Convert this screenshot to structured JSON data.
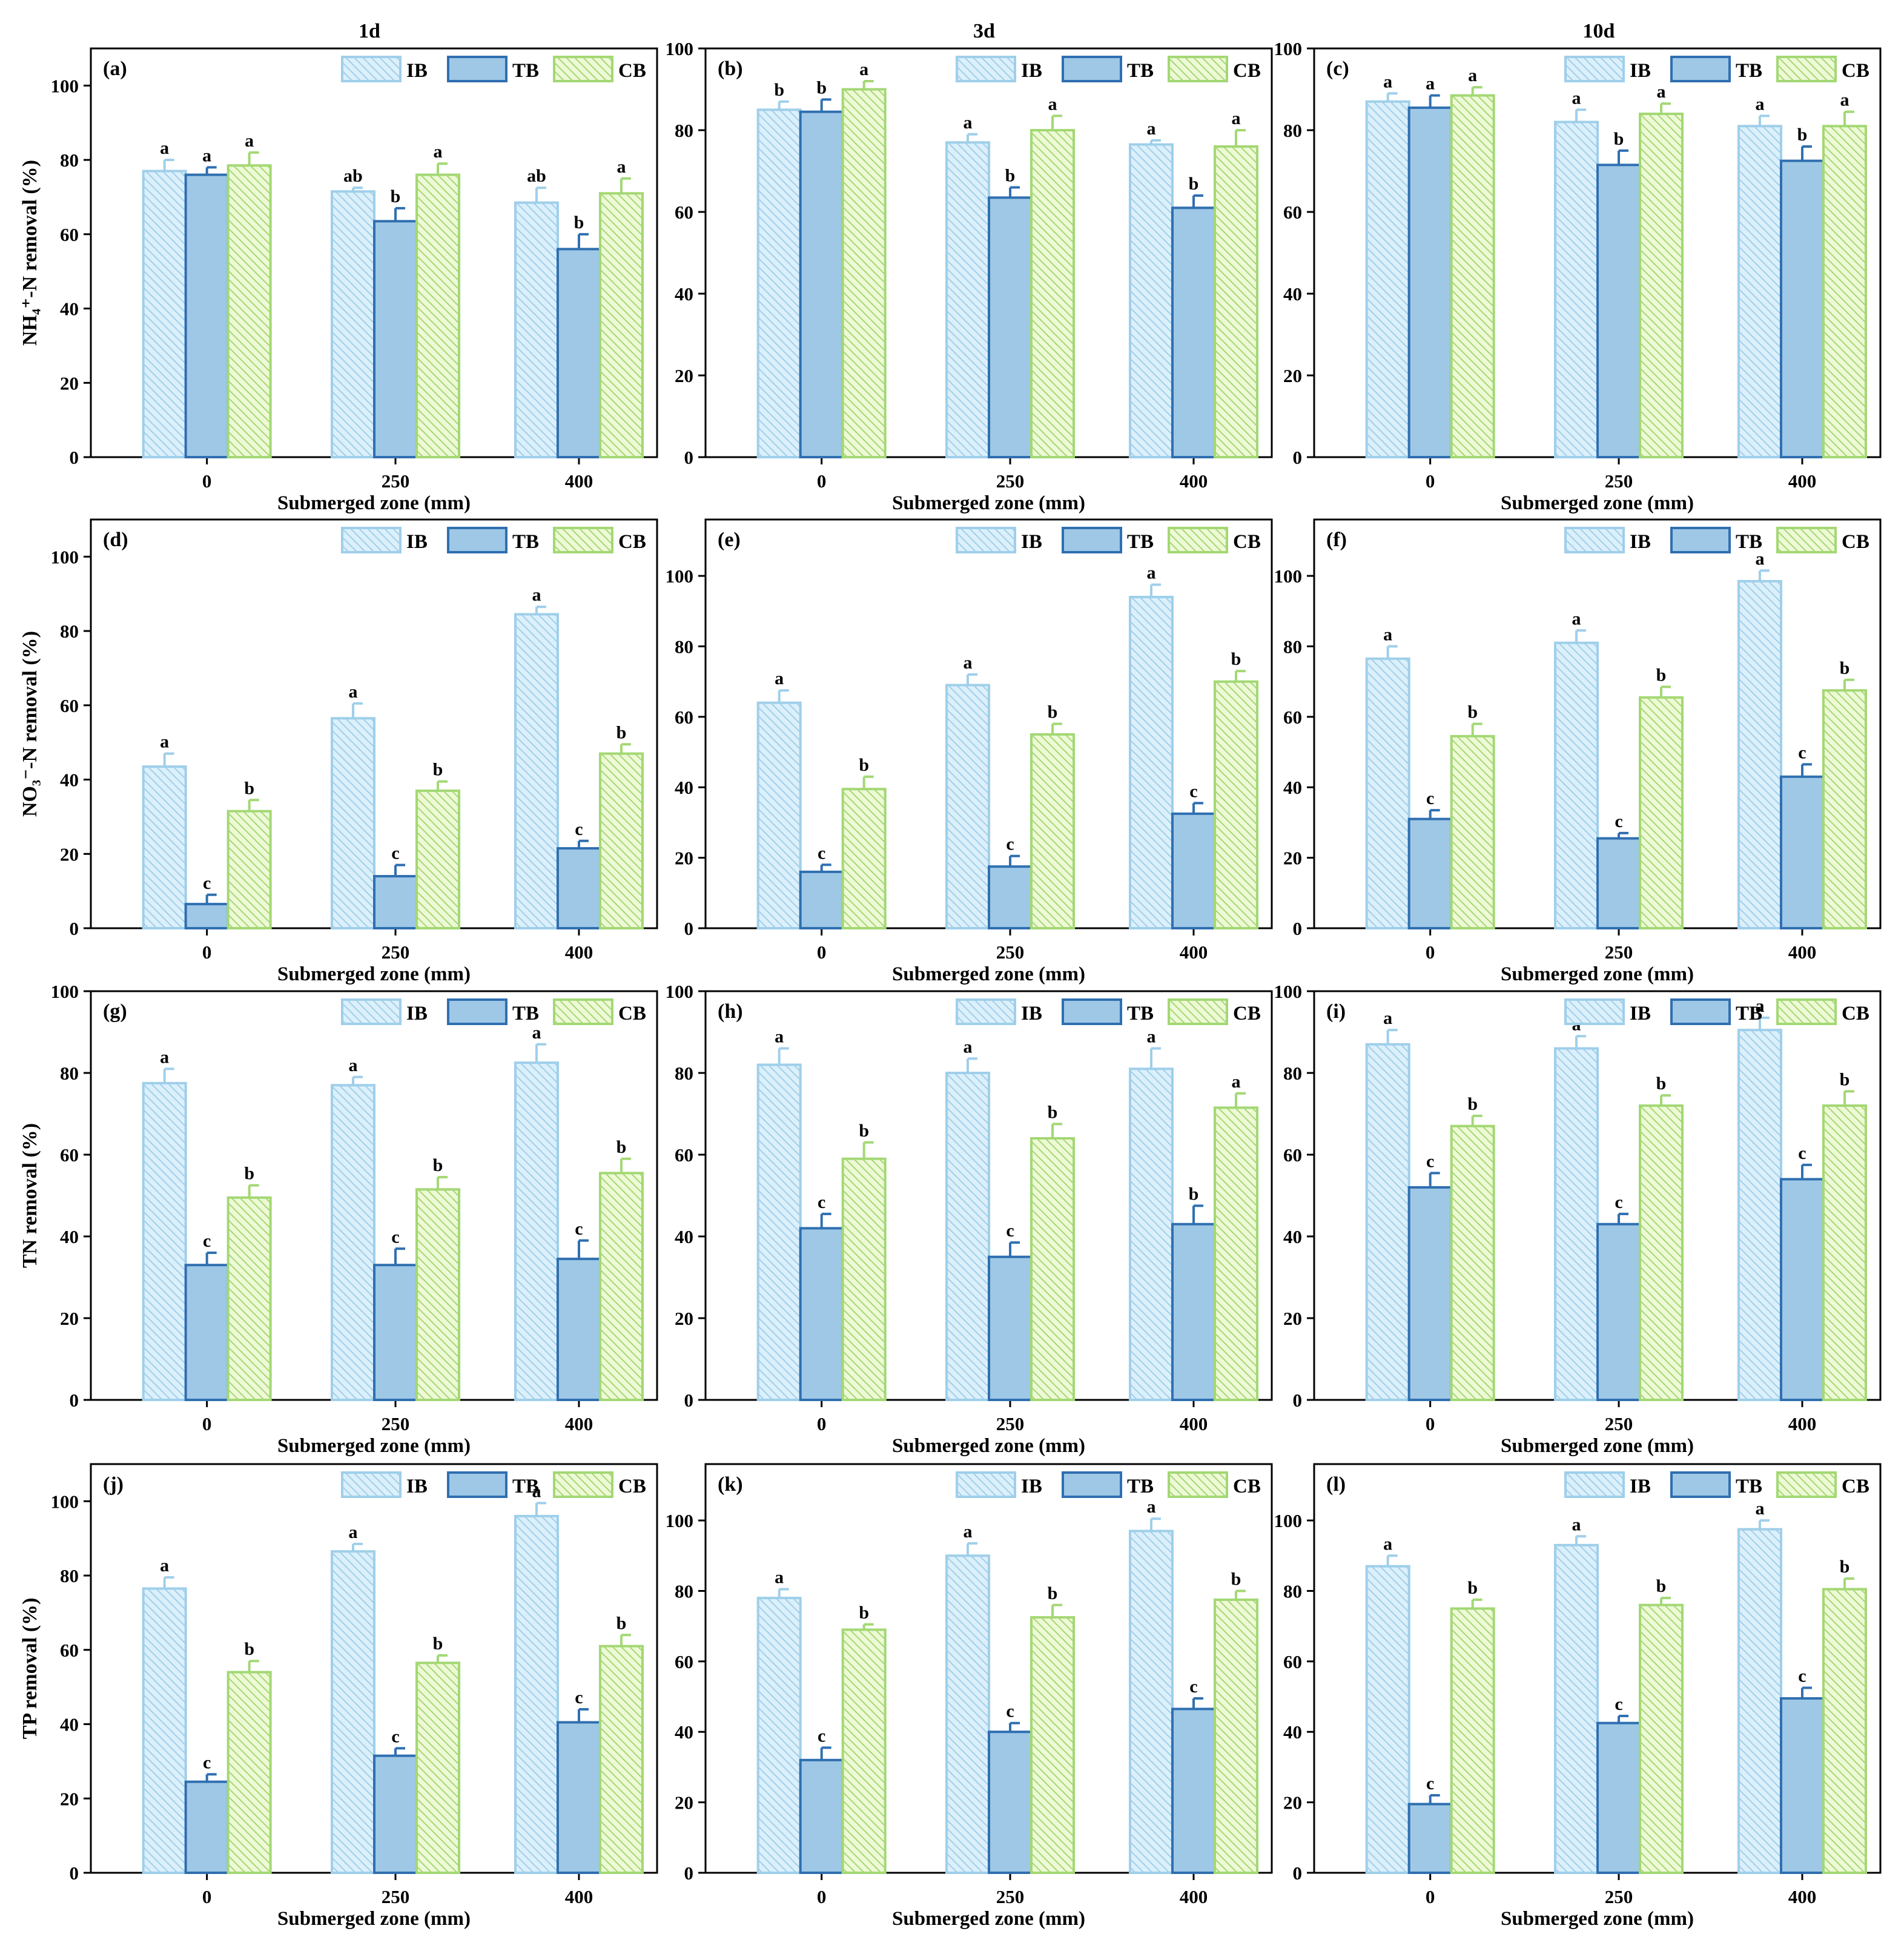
{
  "colors": {
    "IB": {
      "fill": "#dcf0fb",
      "stroke": "#9fcfea",
      "hatch": "#9fcfea"
    },
    "TB": {
      "fill": "#9ec8e6",
      "stroke": "#2f6fb0"
    },
    "CB": {
      "fill": "#eef9d6",
      "stroke": "#a3d874",
      "hatch": "#a3d874"
    },
    "axis": "#000000"
  },
  "column_titles": [
    "1d",
    "3d",
    "10d"
  ],
  "chart_data": [
    {
      "panel": "(a)",
      "type": "bar",
      "column_title": "1d",
      "ylabel": "NH₄⁺-N removal (%)",
      "xlabel": "Submerged zone (mm)",
      "categories": [
        "0",
        "250",
        "400"
      ],
      "ylim": [
        0,
        110
      ],
      "yticks": [
        0,
        20,
        40,
        60,
        80,
        100
      ],
      "legend": [
        "IB",
        "TB",
        "CB"
      ],
      "legend_position": "top-right",
      "series": [
        {
          "name": "IB",
          "values": [
            77,
            71.5,
            68.5
          ],
          "errors": [
            3,
            1,
            4
          ],
          "letters": [
            "a",
            "ab",
            "ab"
          ]
        },
        {
          "name": "TB",
          "values": [
            76,
            63.5,
            56
          ],
          "errors": [
            2,
            3.5,
            4
          ],
          "letters": [
            "a",
            "b",
            "b"
          ]
        },
        {
          "name": "CB",
          "values": [
            78.5,
            76,
            71
          ],
          "errors": [
            3.5,
            3,
            4
          ],
          "letters": [
            "a",
            "a",
            "a"
          ]
        }
      ]
    },
    {
      "panel": "(b)",
      "type": "bar",
      "column_title": "3d",
      "ylabel": "",
      "xlabel": "Submerged zone (mm)",
      "categories": [
        "0",
        "250",
        "400"
      ],
      "ylim": [
        0,
        100
      ],
      "yticks": [
        0,
        20,
        40,
        60,
        80,
        100
      ],
      "legend": [
        "IB",
        "TB",
        "CB"
      ],
      "legend_position": "top-right",
      "series": [
        {
          "name": "IB",
          "values": [
            85,
            77,
            76.5
          ],
          "errors": [
            2,
            2,
            1
          ],
          "letters": [
            "b",
            "a",
            "a"
          ]
        },
        {
          "name": "TB",
          "values": [
            84.5,
            63.5,
            61
          ],
          "errors": [
            3,
            2.5,
            3
          ],
          "letters": [
            "b",
            "b",
            "b"
          ]
        },
        {
          "name": "CB",
          "values": [
            90,
            80,
            76
          ],
          "errors": [
            2,
            3.5,
            4
          ],
          "letters": [
            "a",
            "a",
            "a"
          ]
        }
      ]
    },
    {
      "panel": "(c)",
      "type": "bar",
      "column_title": "10d",
      "ylabel": "",
      "xlabel": "Submerged zone (mm)",
      "categories": [
        "0",
        "250",
        "400"
      ],
      "ylim": [
        0,
        100
      ],
      "yticks": [
        0,
        20,
        40,
        60,
        80,
        100
      ],
      "legend": [
        "IB",
        "TB",
        "CB"
      ],
      "legend_position": "top-right",
      "series": [
        {
          "name": "IB",
          "values": [
            87,
            82,
            81
          ],
          "errors": [
            2,
            3,
            2.5
          ],
          "letters": [
            "a",
            "a",
            "a"
          ]
        },
        {
          "name": "TB",
          "values": [
            85.5,
            71.5,
            72.5
          ],
          "errors": [
            3,
            3.5,
            3.5
          ],
          "letters": [
            "a",
            "b",
            "b"
          ]
        },
        {
          "name": "CB",
          "values": [
            88.5,
            84,
            81
          ],
          "errors": [
            2,
            2.5,
            3.5
          ],
          "letters": [
            "a",
            "a",
            "a"
          ]
        }
      ]
    },
    {
      "panel": "(d)",
      "type": "bar",
      "column_title": "1d",
      "ylabel": "NO₃⁻-N removal (%)",
      "xlabel": "Submerged zone (mm)",
      "categories": [
        "0",
        "250",
        "400"
      ],
      "ylim": [
        0,
        110
      ],
      "yticks": [
        0,
        20,
        40,
        60,
        80,
        100
      ],
      "legend": [
        "IB",
        "TB",
        "CB"
      ],
      "legend_position": "top-right",
      "series": [
        {
          "name": "IB",
          "values": [
            43.5,
            56.5,
            84.5
          ],
          "errors": [
            3.5,
            4,
            2
          ],
          "letters": [
            "a",
            "a",
            "a"
          ]
        },
        {
          "name": "TB",
          "values": [
            6.5,
            14,
            21.5
          ],
          "errors": [
            2.5,
            3,
            2
          ],
          "letters": [
            "c",
            "c",
            "c"
          ]
        },
        {
          "name": "CB",
          "values": [
            31.5,
            37,
            47
          ],
          "errors": [
            3,
            2.5,
            2.5
          ],
          "letters": [
            "b",
            "b",
            "b"
          ]
        }
      ]
    },
    {
      "panel": "(e)",
      "type": "bar",
      "column_title": "3d",
      "ylabel": "",
      "xlabel": "Submerged zone (mm)",
      "categories": [
        "0",
        "250",
        "400"
      ],
      "ylim": [
        0,
        116
      ],
      "yticks": [
        0,
        20,
        40,
        60,
        80,
        100
      ],
      "legend": [
        "IB",
        "TB",
        "CB"
      ],
      "legend_position": "top-right",
      "series": [
        {
          "name": "IB",
          "values": [
            64,
            69,
            94
          ],
          "errors": [
            3.5,
            3,
            3.5
          ],
          "letters": [
            "a",
            "a",
            "a"
          ]
        },
        {
          "name": "TB",
          "values": [
            16,
            17.5,
            32.5
          ],
          "errors": [
            2,
            3,
            3
          ],
          "letters": [
            "c",
            "c",
            "c"
          ]
        },
        {
          "name": "CB",
          "values": [
            39.5,
            55,
            70
          ],
          "errors": [
            3.5,
            3,
            3
          ],
          "letters": [
            "b",
            "b",
            "b"
          ]
        }
      ]
    },
    {
      "panel": "(f)",
      "type": "bar",
      "column_title": "10d",
      "ylabel": "",
      "xlabel": "Submerged zone (mm)",
      "categories": [
        "0",
        "250",
        "400"
      ],
      "ylim": [
        0,
        116
      ],
      "yticks": [
        0,
        20,
        40,
        60,
        80,
        100
      ],
      "legend": [
        "IB",
        "TB",
        "CB"
      ],
      "legend_position": "top-right",
      "series": [
        {
          "name": "IB",
          "values": [
            76.5,
            81,
            98.5
          ],
          "errors": [
            3.5,
            3.5,
            3
          ],
          "letters": [
            "a",
            "a",
            "a"
          ]
        },
        {
          "name": "TB",
          "values": [
            31,
            25.5,
            43
          ],
          "errors": [
            2.5,
            1.5,
            3.5
          ],
          "letters": [
            "c",
            "c",
            "c"
          ]
        },
        {
          "name": "CB",
          "values": [
            54.5,
            65.5,
            67.5
          ],
          "errors": [
            3.5,
            3,
            3
          ],
          "letters": [
            "b",
            "b",
            "b"
          ]
        }
      ]
    },
    {
      "panel": "(g)",
      "type": "bar",
      "column_title": "1d",
      "ylabel": "TN removal (%)",
      "xlabel": "Submerged zone (mm)",
      "categories": [
        "0",
        "250",
        "400"
      ],
      "ylim": [
        0,
        100
      ],
      "yticks": [
        0,
        20,
        40,
        60,
        80,
        100
      ],
      "legend": [
        "IB",
        "TB",
        "CB"
      ],
      "legend_position": "top-right",
      "series": [
        {
          "name": "IB",
          "values": [
            77.5,
            77,
            82.5
          ],
          "errors": [
            3.5,
            2,
            4.5
          ],
          "letters": [
            "a",
            "a",
            "a"
          ]
        },
        {
          "name": "TB",
          "values": [
            33,
            33,
            34.5
          ],
          "errors": [
            3,
            4,
            4.5
          ],
          "letters": [
            "c",
            "c",
            "c"
          ]
        },
        {
          "name": "CB",
          "values": [
            49.5,
            51.5,
            55.5
          ],
          "errors": [
            3,
            3,
            3.5
          ],
          "letters": [
            "b",
            "b",
            "b"
          ]
        }
      ]
    },
    {
      "panel": "(h)",
      "type": "bar",
      "column_title": "3d",
      "ylabel": "",
      "xlabel": "Submerged zone (mm)",
      "categories": [
        "0",
        "250",
        "400"
      ],
      "ylim": [
        0,
        100
      ],
      "yticks": [
        0,
        20,
        40,
        60,
        80,
        100
      ],
      "legend": [
        "IB",
        "TB",
        "CB"
      ],
      "legend_position": "top-right",
      "series": [
        {
          "name": "IB",
          "values": [
            82,
            80,
            81
          ],
          "errors": [
            4,
            3.5,
            5
          ],
          "letters": [
            "a",
            "a",
            "a"
          ]
        },
        {
          "name": "TB",
          "values": [
            42,
            35,
            43
          ],
          "errors": [
            3.5,
            3.5,
            4.5
          ],
          "letters": [
            "c",
            "c",
            "b"
          ]
        },
        {
          "name": "CB",
          "values": [
            59,
            64,
            71.5
          ],
          "errors": [
            4,
            3.5,
            3.5
          ],
          "letters": [
            "b",
            "b",
            "a"
          ]
        }
      ]
    },
    {
      "panel": "(i)",
      "type": "bar",
      "column_title": "10d",
      "ylabel": "",
      "xlabel": "Submerged zone (mm)",
      "categories": [
        "0",
        "250",
        "400"
      ],
      "ylim": [
        0,
        100
      ],
      "yticks": [
        0,
        20,
        40,
        60,
        80,
        100
      ],
      "legend": [
        "IB",
        "TB",
        "CB"
      ],
      "legend_position": "top-right",
      "series": [
        {
          "name": "IB",
          "values": [
            87,
            86,
            90.5
          ],
          "errors": [
            3.5,
            3,
            3
          ],
          "letters": [
            "a",
            "a",
            "a"
          ]
        },
        {
          "name": "TB",
          "values": [
            52,
            43,
            54
          ],
          "errors": [
            3.5,
            2.5,
            3.5
          ],
          "letters": [
            "c",
            "c",
            "c"
          ]
        },
        {
          "name": "CB",
          "values": [
            67,
            72,
            72
          ],
          "errors": [
            2.5,
            2.5,
            3.5
          ],
          "letters": [
            "b",
            "b",
            "b"
          ]
        }
      ]
    },
    {
      "panel": "(j)",
      "type": "bar",
      "column_title": "1d",
      "ylabel": "TP removal (%)",
      "xlabel": "Submerged zone (mm)",
      "categories": [
        "0",
        "250",
        "400"
      ],
      "ylim": [
        0,
        110
      ],
      "yticks": [
        0,
        20,
        40,
        60,
        80,
        100
      ],
      "legend": [
        "IB",
        "TB",
        "CB"
      ],
      "legend_position": "top-right",
      "series": [
        {
          "name": "IB",
          "values": [
            76.5,
            86.5,
            96
          ],
          "errors": [
            3,
            2,
            3.5
          ],
          "letters": [
            "a",
            "a",
            "a"
          ]
        },
        {
          "name": "TB",
          "values": [
            24.5,
            31.5,
            40.5
          ],
          "errors": [
            2,
            2,
            3.5
          ],
          "letters": [
            "c",
            "c",
            "c"
          ]
        },
        {
          "name": "CB",
          "values": [
            54,
            56.5,
            61
          ],
          "errors": [
            3,
            2,
            3
          ],
          "letters": [
            "b",
            "b",
            "b"
          ]
        }
      ]
    },
    {
      "panel": "(k)",
      "type": "bar",
      "column_title": "3d",
      "ylabel": "",
      "xlabel": "Submerged zone (mm)",
      "categories": [
        "0",
        "250",
        "400"
      ],
      "ylim": [
        0,
        116
      ],
      "yticks": [
        0,
        20,
        40,
        60,
        80,
        100
      ],
      "legend": [
        "IB",
        "TB",
        "CB"
      ],
      "legend_position": "top-right",
      "series": [
        {
          "name": "IB",
          "values": [
            78,
            90,
            97
          ],
          "errors": [
            2.5,
            3.5,
            3.5
          ],
          "letters": [
            "a",
            "a",
            "a"
          ]
        },
        {
          "name": "TB",
          "values": [
            32,
            40,
            46.5
          ],
          "errors": [
            3.5,
            2.5,
            3
          ],
          "letters": [
            "c",
            "c",
            "c"
          ]
        },
        {
          "name": "CB",
          "values": [
            69,
            72.5,
            77.5
          ],
          "errors": [
            1.5,
            3.5,
            2.5
          ],
          "letters": [
            "b",
            "b",
            "b"
          ]
        }
      ]
    },
    {
      "panel": "(l)",
      "type": "bar",
      "column_title": "10d",
      "ylabel": "",
      "xlabel": "Submerged zone (mm)",
      "categories": [
        "0",
        "250",
        "400"
      ],
      "ylim": [
        0,
        116
      ],
      "yticks": [
        0,
        20,
        40,
        60,
        80,
        100
      ],
      "legend": [
        "IB",
        "TB",
        "CB"
      ],
      "legend_position": "top-right",
      "series": [
        {
          "name": "IB",
          "values": [
            87,
            93,
            97.5
          ],
          "errors": [
            3,
            2.5,
            2.5
          ],
          "letters": [
            "a",
            "a",
            "a"
          ]
        },
        {
          "name": "TB",
          "values": [
            19.5,
            42.5,
            49.5
          ],
          "errors": [
            2.5,
            2,
            3
          ],
          "letters": [
            "c",
            "c",
            "c"
          ]
        },
        {
          "name": "CB",
          "values": [
            75,
            76,
            80.5
          ],
          "errors": [
            2.5,
            2,
            3
          ],
          "letters": [
            "b",
            "b",
            "b"
          ]
        }
      ]
    }
  ]
}
